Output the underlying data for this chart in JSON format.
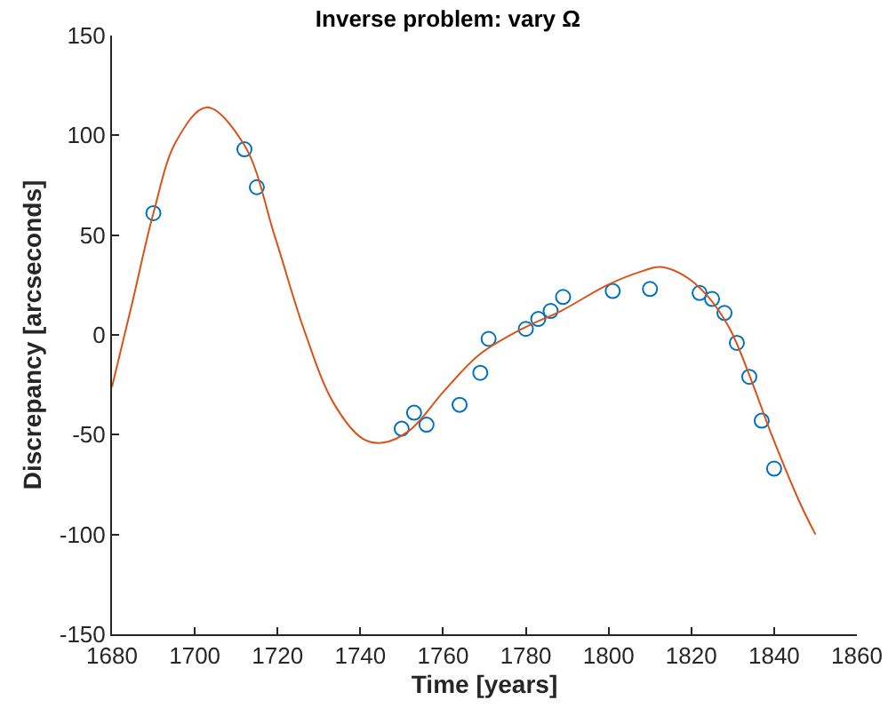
{
  "chart_data": {
    "type": "scatter",
    "title": "Inverse problem: vary Ω",
    "xlabel": "Time [years]",
    "ylabel": "Discrepancy [arcseconds]",
    "xlim": [
      1680,
      1860
    ],
    "xticks": [
      1680,
      1700,
      1720,
      1740,
      1760,
      1780,
      1800,
      1820,
      1840,
      1860
    ],
    "ylim": [
      -150,
      150
    ],
    "yticks": [
      -150,
      -100,
      -50,
      0,
      50,
      100,
      150
    ],
    "grid": false,
    "series": [
      {
        "marker": "circle",
        "color": "#0072bd",
        "x": [
          1690,
          1712,
          1715,
          1750,
          1753,
          1756,
          1764,
          1769,
          1771,
          1780,
          1783,
          1786,
          1789,
          1801,
          1810,
          1822,
          1825,
          1828,
          1831,
          1834,
          1837,
          1840
        ],
        "values": [
          61,
          93,
          74,
          -47,
          -39,
          -45,
          -35,
          -19,
          -2,
          3,
          8,
          12,
          19,
          22,
          23,
          21,
          18,
          11,
          -4,
          -21,
          -43,
          -67
        ]
      },
      {
        "type": "line",
        "marker": "none",
        "line_style": "solid",
        "color": "#d95319",
        "x": [
          1680,
          1685,
          1690,
          1695.5,
          1702.8,
          1712,
          1719.4,
          1726.5,
          1733.5,
          1740.6,
          1745.5,
          1751.8,
          1760.3,
          1768.7,
          1780,
          1788.5,
          1799.7,
          1808.2,
          1812.4,
          1818,
          1823.7,
          1829.3,
          1834.9,
          1839.2,
          1846.2,
          1850
        ],
        "values": [
          -26,
          17,
          61,
          97,
          114,
          95,
          49,
          2,
          -34,
          -52,
          -54,
          -48,
          -28,
          -10,
          4,
          12,
          25,
          32,
          34,
          30,
          20,
          3,
          -25,
          -49,
          -84,
          -100
        ]
      }
    ]
  }
}
